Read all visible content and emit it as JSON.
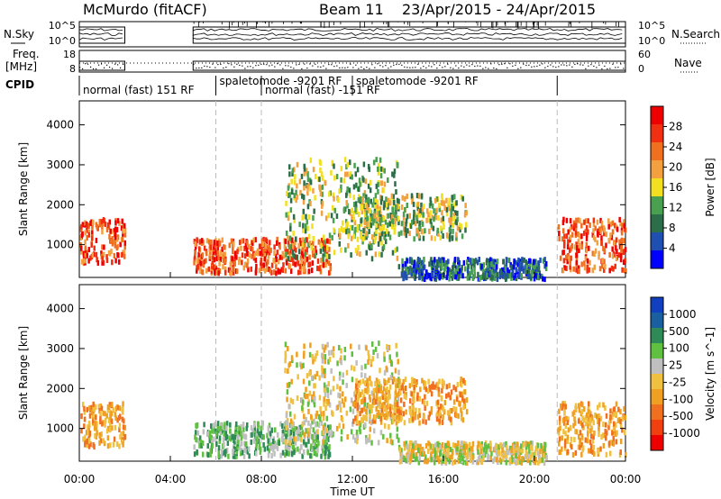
{
  "header": {
    "station": "McMurdo (fitACF)",
    "beam": "Beam 11",
    "date_range": "23/Apr/2015 - 24/Apr/2015"
  },
  "side_labels": {
    "nsky": "N.Sky",
    "nsearch": "N.Search",
    "freq_line1": "Freq.",
    "freq_line2": "[MHz]",
    "nave": "Nave",
    "cpid": "CPID"
  },
  "strip_ticks": {
    "nsky_left_top": "10^5",
    "nsky_left_bottom": "10^0",
    "nsky_right_top": "10^5",
    "nsky_right_bottom": "10^0",
    "freq_left_top": "18",
    "freq_left_bottom": "8",
    "nave_right_top": "60",
    "nave_right_bottom": "0"
  },
  "cpid_segments": [
    {
      "label": "normal (fast) 151 RF",
      "start_h": 0.0,
      "end_h": 6.0
    },
    {
      "label": "spaletomode -9201 RF",
      "start_h": 6.0,
      "end_h": 8.0
    },
    {
      "label": "normal (fast) -151 RF",
      "start_h": 8.0,
      "end_h": 12.0
    },
    {
      "label": "spaletomode -9201 RF",
      "start_h": 12.0,
      "end_h": 21.0
    }
  ],
  "chart_data": [
    {
      "type": "heatmap",
      "name": "power",
      "xlabel": "Time UT",
      "ylabel": "Slant Range [km]",
      "xlim": [
        0,
        24
      ],
      "ylim": [
        180,
        4600
      ],
      "y_ticks": [
        1000,
        2000,
        3000,
        4000
      ],
      "colorbar_label": "Power [dB]",
      "colorbar_ticks": [
        "28",
        "24",
        "20",
        "16",
        "12",
        "8",
        "4"
      ],
      "colorbar_colors": [
        "#0000ff",
        "#1f4fb0",
        "#2c6e4a",
        "#48a050",
        "#f2e020",
        "#f2a040",
        "#f07020",
        "#f03010",
        "#ee0000"
      ],
      "data_gaps": [
        [
          2.0,
          5.0
        ]
      ],
      "echo_regions": [
        {
          "t": [
            0.0,
            2.0
          ],
          "r": [
            600,
            1700
          ],
          "level": "high"
        },
        {
          "t": [
            5.0,
            11.0
          ],
          "r": [
            350,
            1200
          ],
          "level": "high"
        },
        {
          "t": [
            9.0,
            14.0
          ],
          "r": [
            700,
            3200
          ],
          "level": "medium"
        },
        {
          "t": [
            12.0,
            17.0
          ],
          "r": [
            1200,
            2300
          ],
          "level": "medium"
        },
        {
          "t": [
            14.0,
            20.5
          ],
          "r": [
            200,
            700
          ],
          "level": "low"
        },
        {
          "t": [
            21.0,
            24.0
          ],
          "r": [
            400,
            1700
          ],
          "level": "high"
        }
      ]
    },
    {
      "type": "heatmap",
      "name": "velocity",
      "xlabel": "Time UT",
      "ylabel": "Slant Range [km]",
      "xlim": [
        0,
        24
      ],
      "ylim": [
        180,
        4600
      ],
      "y_ticks": [
        1000,
        2000,
        3000,
        4000
      ],
      "colorbar_label": "Velocity [m s^-1]",
      "colorbar_ticks": [
        "1000",
        "500",
        "100",
        "25",
        "-25",
        "-100",
        "-500",
        "-1000"
      ],
      "colorbar_colors": [
        "#ee0000",
        "#f04010",
        "#f07020",
        "#f0a020",
        "#f0c040",
        "#bfbfbf",
        "#60c040",
        "#2e8b57",
        "#1a5fa0",
        "#1040c0"
      ],
      "data_gaps": [
        [
          2.0,
          5.0
        ]
      ],
      "echo_regions": [
        {
          "t": [
            0.0,
            2.0
          ],
          "r": [
            600,
            1700
          ],
          "v": "negative"
        },
        {
          "t": [
            5.0,
            11.0
          ],
          "r": [
            350,
            1200
          ],
          "v": "positive"
        },
        {
          "t": [
            9.0,
            14.0
          ],
          "r": [
            700,
            3200
          ],
          "v": "mixed"
        },
        {
          "t": [
            12.0,
            17.0
          ],
          "r": [
            1200,
            2300
          ],
          "v": "negative"
        },
        {
          "t": [
            14.0,
            20.5
          ],
          "r": [
            200,
            700
          ],
          "v": "mixed"
        },
        {
          "t": [
            21.0,
            24.0
          ],
          "r": [
            400,
            1700
          ],
          "v": "negative"
        }
      ]
    }
  ],
  "x_ticks": [
    "00:00",
    "04:00",
    "08:00",
    "12:00",
    "16:00",
    "20:00",
    "00:00"
  ],
  "x_axis_label": "Time UT"
}
